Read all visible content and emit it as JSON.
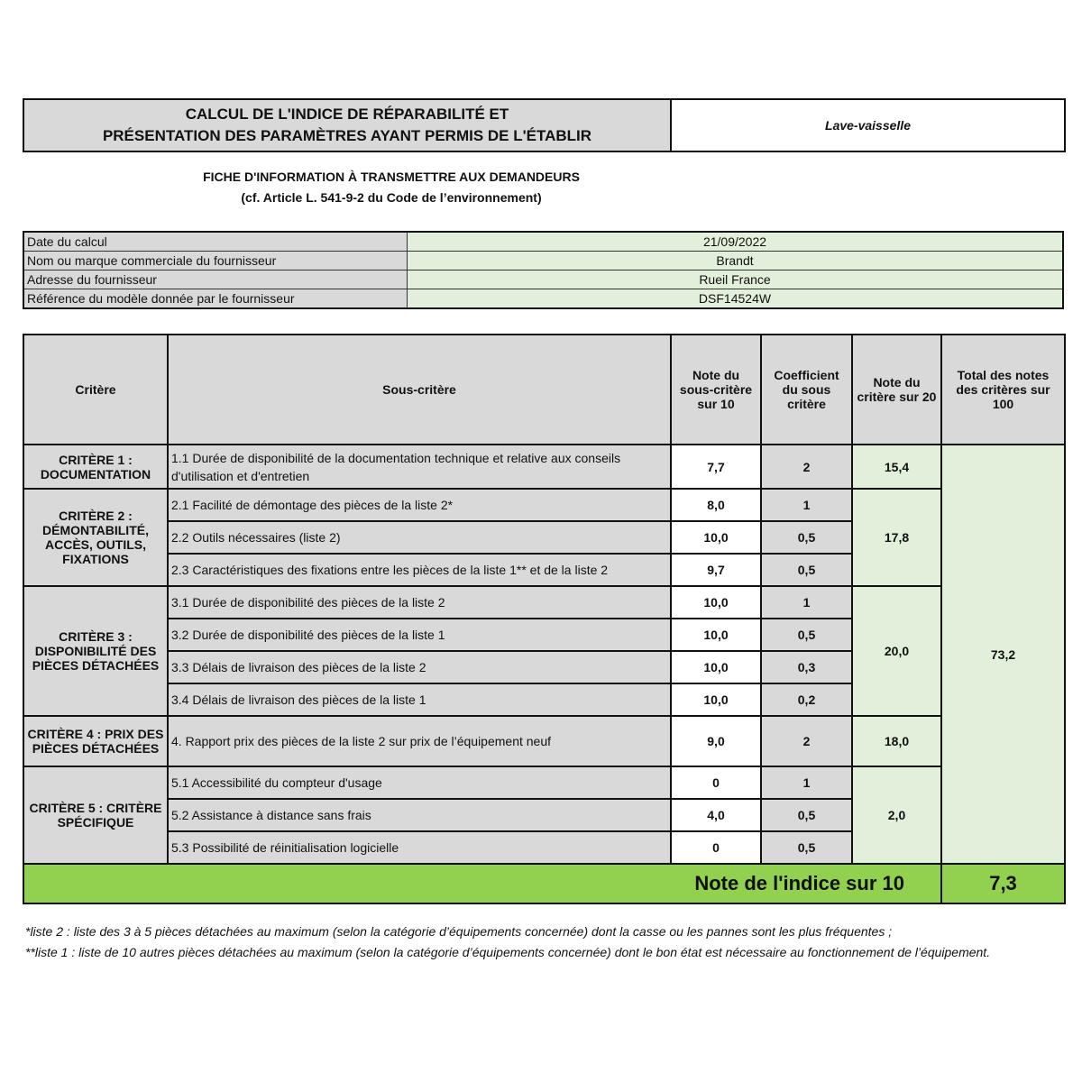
{
  "title": {
    "line1": "CALCUL DE L'INDICE DE RÉPARABILITÉ ET",
    "line2": "PRÉSENTATION DES PARAMÈTRES AYANT PERMIS DE L'ÉTABLIR"
  },
  "equipment_type": "Lave-vaisselle",
  "subtitle": {
    "line1": "FICHE D'INFORMATION À TRANSMETTRE AUX DEMANDEURS",
    "line2": "(cf. Article L. 541-9-2 du Code de l’environnement)"
  },
  "info": [
    {
      "label": "Date du calcul",
      "value": "21/09/2022"
    },
    {
      "label": "Nom ou marque commerciale du fournisseur",
      "value": "Brandt"
    },
    {
      "label": "Adresse du fournisseur",
      "value": "Rueil France"
    },
    {
      "label": "Référence du modèle donnée par le fournisseur",
      "value": "DSF14524W"
    }
  ],
  "headers": {
    "critere": "Critère",
    "sous_critere": "Sous-critère",
    "note": "Note du sous-critère sur 10",
    "coef": "Coefficient du sous critère",
    "note_critere": "Note du critère sur 20",
    "total": "Total des notes des critères sur 100"
  },
  "criteria": [
    {
      "label": "CRITÈRE 1 : DOCUMENTATION",
      "score": "15,4",
      "subs": [
        {
          "label": "1.1 Durée de disponibilité de la documentation technique et relative aux conseils d'utilisation et d'entretien",
          "note": "7,7",
          "coef": "2"
        }
      ]
    },
    {
      "label": "CRITÈRE 2 : DÉMONTABILITÉ, ACCÈS, OUTILS, FIXATIONS",
      "score": "17,8",
      "subs": [
        {
          "label": "2.1 Facilité de démontage des pièces de la liste 2*",
          "note": "8,0",
          "coef": "1"
        },
        {
          "label": "2.2 Outils nécessaires (liste 2)",
          "note": "10,0",
          "coef": "0,5"
        },
        {
          "label": "2.3 Caractéristiques des fixations entre les pièces de la liste 1** et de la liste 2",
          "note": "9,7",
          "coef": "0,5"
        }
      ]
    },
    {
      "label": "CRITÈRE 3 : DISPONIBILITÉ DES PIÈCES DÉTACHÉES",
      "score": "20,0",
      "subs": [
        {
          "label": "3.1 Durée de disponibilité des pièces de la liste 2",
          "note": "10,0",
          "coef": "1"
        },
        {
          "label": "3.2 Durée de disponibilité des pièces de la liste 1",
          "note": "10,0",
          "coef": "0,5"
        },
        {
          "label": "3.3 Délais de livraison des pièces de la liste 2",
          "note": "10,0",
          "coef": "0,3"
        },
        {
          "label": "3.4 Délais de livraison des pièces de la liste 1",
          "note": "10,0",
          "coef": "0,2"
        }
      ]
    },
    {
      "label": "CRITÈRE 4 : PRIX DES PIÈCES DÉTACHÉES",
      "score": "18,0",
      "subs": [
        {
          "label": "4. Rapport prix des pièces de la liste 2 sur prix de l’équipement neuf",
          "note": "9,0",
          "coef": "2"
        }
      ]
    },
    {
      "label": "CRITÈRE 5 : CRITÈRE SPÉCIFIQUE",
      "score": "2,0",
      "subs": [
        {
          "label": "5.1 Accessibilité du compteur d'usage",
          "note": "0",
          "coef": "1"
        },
        {
          "label": "5.2 Assistance à distance sans frais",
          "note": "4,0",
          "coef": "0,5"
        },
        {
          "label": "5.3 Possibilité de réinitialisation logicielle",
          "note": "0",
          "coef": "0,5"
        }
      ]
    }
  ],
  "total": "73,2",
  "index": {
    "label": "Note de l'indice sur 10",
    "value": "7,3"
  },
  "footnotes": [
    "*liste 2 : liste des 3 à 5 pièces détachées au maximum (selon la catégorie d’équipements concernée) dont la casse ou les pannes sont les plus fréquentes ;",
    "**liste 1 : liste de 10 autres pièces détachées au maximum (selon la catégorie d’équipements concernée) dont le bon état est nécessaire au fonctionnement de l’équipement."
  ],
  "colors": {
    "header_gray": "#d9d9d9",
    "light_green": "#e2efda",
    "index_green": "#92d050"
  }
}
